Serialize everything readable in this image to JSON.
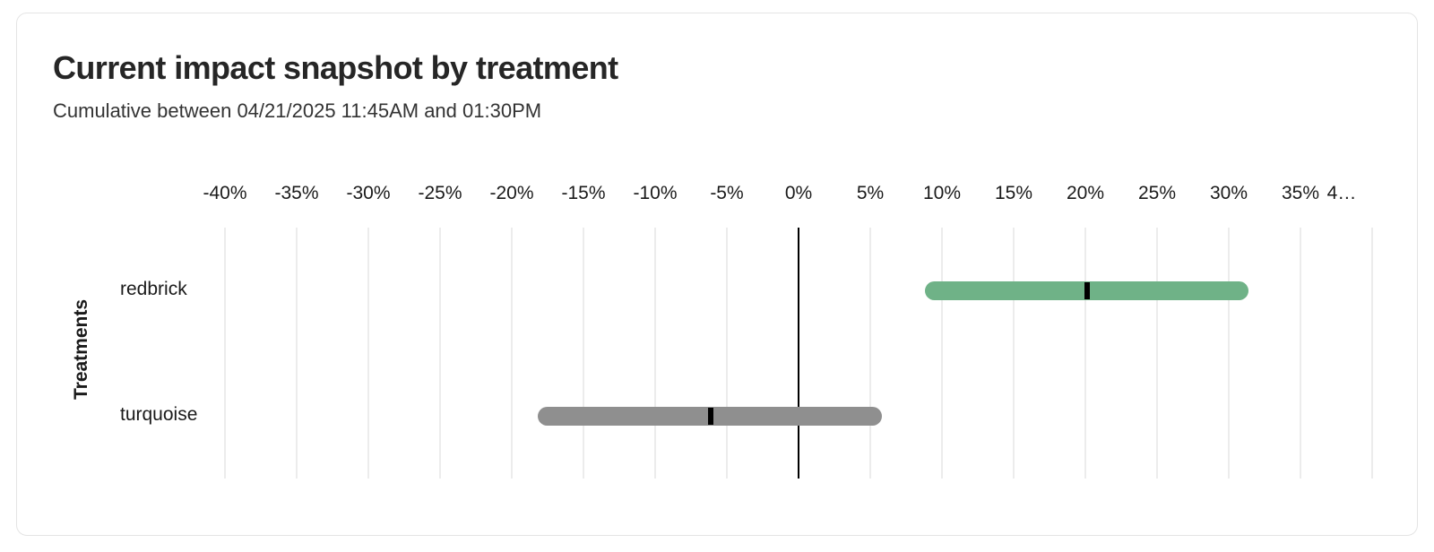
{
  "chart_data": {
    "type": "bar",
    "subtype": "horizontal-range-interval",
    "title": "Current impact snapshot by treatment",
    "subtitle": "Cumulative between 04/21/2025 11:45AM and 01:30PM",
    "xlabel": "",
    "ylabel": "Treatments",
    "xlim": [
      -40,
      40
    ],
    "grid": "vertical",
    "legend": "none",
    "x_tick_values": [
      -40,
      -35,
      -30,
      -25,
      -20,
      -15,
      -10,
      -5,
      0,
      5,
      10,
      15,
      20,
      25,
      30,
      35,
      40
    ],
    "x_tick_labels": [
      "-40%",
      "-35%",
      "-30%",
      "-25%",
      "-20%",
      "-15%",
      "-10%",
      "-5%",
      "0%",
      "5%",
      "10%",
      "15%",
      "20%",
      "25%",
      "30%",
      "35%",
      "4…"
    ],
    "categories": [
      "redbrick",
      "turquoise"
    ],
    "series": [
      {
        "name": "redbrick",
        "low": 8.8,
        "center": 20.1,
        "high": 31.4,
        "color": "#6FB287"
      },
      {
        "name": "turquoise",
        "low": -18.2,
        "center": -6.1,
        "high": 5.8,
        "color": "#8F8F8F"
      }
    ],
    "marker_color": "#000000",
    "zero_line_color": "#000000",
    "gridline_color": "#ececec"
  }
}
